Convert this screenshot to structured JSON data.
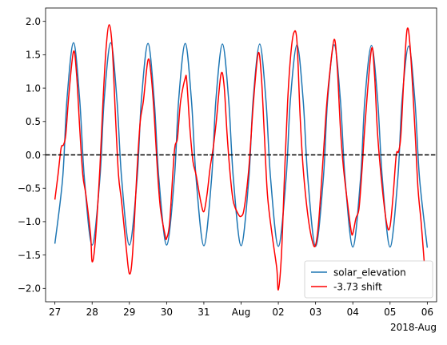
{
  "chart_data": {
    "type": "line",
    "title": "",
    "xlabel": "",
    "ylabel": "",
    "x_offset_label": "2018-Aug",
    "xlim": [
      "2018-07-26T18:00",
      "2018-08-06T06:00"
    ],
    "ylim": [
      -2.2,
      2.2
    ],
    "grid": false,
    "legend_position": "lower-right",
    "x_ticks": [
      {
        "date": "2018-07-27",
        "label": "27"
      },
      {
        "date": "2018-07-28",
        "label": "28"
      },
      {
        "date": "2018-07-29",
        "label": "29"
      },
      {
        "date": "2018-07-30",
        "label": "30"
      },
      {
        "date": "2018-07-31",
        "label": "31"
      },
      {
        "date": "2018-08-01",
        "label": "Aug"
      },
      {
        "date": "2018-08-02",
        "label": "02"
      },
      {
        "date": "2018-08-03",
        "label": "03"
      },
      {
        "date": "2018-08-04",
        "label": "04"
      },
      {
        "date": "2018-08-05",
        "label": "05"
      },
      {
        "date": "2018-08-06",
        "label": "06"
      }
    ],
    "y_ticks": [
      -2.0,
      -1.5,
      -1.0,
      -0.5,
      0.0,
      0.5,
      1.0,
      1.5,
      2.0
    ],
    "y_tick_labels": [
      "−2.0",
      "−1.5",
      "−1.0",
      "−0.5",
      "0.0",
      "0.5",
      "1.0",
      "1.5",
      "2.0"
    ],
    "reference_line": {
      "y": 0.0,
      "style": "dashed",
      "color": "#000000"
    },
    "series": [
      {
        "name": "solar_elevation",
        "color": "#1f77b4",
        "points": [
          [
            "2018-07-27T00:00",
            -1.33
          ],
          [
            "2018-07-27T05:00",
            -0.35
          ],
          [
            "2018-07-27T07:45",
            0.82
          ],
          [
            "2018-07-27T12:00",
            1.68
          ],
          [
            "2018-07-27T16:00",
            0.82
          ],
          [
            "2018-07-27T19:00",
            -0.35
          ],
          [
            "2018-07-28T00:00",
            -1.35
          ],
          [
            "2018-07-28T05:00",
            -0.35
          ],
          [
            "2018-07-28T07:45",
            0.82
          ],
          [
            "2018-07-28T12:00",
            1.68
          ],
          [
            "2018-07-28T16:00",
            0.82
          ],
          [
            "2018-07-28T19:00",
            -0.35
          ],
          [
            "2018-07-29T00:00",
            -1.35
          ],
          [
            "2018-07-29T05:00",
            -0.35
          ],
          [
            "2018-07-29T07:45",
            0.82
          ],
          [
            "2018-07-29T12:00",
            1.67
          ],
          [
            "2018-07-29T16:00",
            0.82
          ],
          [
            "2018-07-29T19:00",
            -0.35
          ],
          [
            "2018-07-30T00:00",
            -1.35
          ],
          [
            "2018-07-30T05:00",
            -0.35
          ],
          [
            "2018-07-30T07:45",
            0.82
          ],
          [
            "2018-07-30T12:00",
            1.67
          ],
          [
            "2018-07-30T16:00",
            0.82
          ],
          [
            "2018-07-30T19:00",
            -0.35
          ],
          [
            "2018-07-31T00:00",
            -1.36
          ],
          [
            "2018-07-31T05:00",
            -0.35
          ],
          [
            "2018-07-31T07:45",
            0.82
          ],
          [
            "2018-07-31T12:00",
            1.66
          ],
          [
            "2018-07-31T16:00",
            0.82
          ],
          [
            "2018-07-31T19:00",
            -0.35
          ],
          [
            "2018-08-01T00:00",
            -1.36
          ],
          [
            "2018-08-01T05:00",
            -0.35
          ],
          [
            "2018-08-01T07:45",
            0.82
          ],
          [
            "2018-08-01T12:00",
            1.66
          ],
          [
            "2018-08-01T16:00",
            0.82
          ],
          [
            "2018-08-01T19:00",
            -0.35
          ],
          [
            "2018-08-02T00:00",
            -1.37
          ],
          [
            "2018-08-02T05:00",
            -0.35
          ],
          [
            "2018-08-02T07:45",
            0.82
          ],
          [
            "2018-08-02T12:00",
            1.65
          ],
          [
            "2018-08-02T16:00",
            0.82
          ],
          [
            "2018-08-02T19:00",
            -0.35
          ],
          [
            "2018-08-03T00:00",
            -1.37
          ],
          [
            "2018-08-03T05:00",
            -0.35
          ],
          [
            "2018-08-03T07:45",
            0.82
          ],
          [
            "2018-08-03T12:00",
            1.65
          ],
          [
            "2018-08-03T16:00",
            0.82
          ],
          [
            "2018-08-03T19:00",
            -0.35
          ],
          [
            "2018-08-04T00:00",
            -1.38
          ],
          [
            "2018-08-04T05:00",
            -0.35
          ],
          [
            "2018-08-04T07:45",
            0.82
          ],
          [
            "2018-08-04T12:00",
            1.64
          ],
          [
            "2018-08-04T16:00",
            0.82
          ],
          [
            "2018-08-04T19:00",
            -0.35
          ],
          [
            "2018-08-05T00:00",
            -1.38
          ],
          [
            "2018-08-05T05:00",
            -0.35
          ],
          [
            "2018-08-05T07:45",
            0.82
          ],
          [
            "2018-08-05T12:00",
            1.63
          ],
          [
            "2018-08-05T16:00",
            0.82
          ],
          [
            "2018-08-05T19:00",
            -0.35
          ],
          [
            "2018-08-06T00:00",
            -1.39
          ]
        ]
      },
      {
        "name": "-3.73 shift",
        "color": "#ff0000",
        "points": [
          [
            "2018-07-27T00:00",
            -0.67
          ],
          [
            "2018-07-27T02:00",
            -0.3
          ],
          [
            "2018-07-27T04:00",
            0.1
          ],
          [
            "2018-07-27T05:30",
            0.15
          ],
          [
            "2018-07-27T07:00",
            0.3
          ],
          [
            "2018-07-27T09:00",
            0.9
          ],
          [
            "2018-07-27T12:00",
            1.55
          ],
          [
            "2018-07-27T14:00",
            1.2
          ],
          [
            "2018-07-27T16:00",
            0.4
          ],
          [
            "2018-07-27T18:00",
            -0.3
          ],
          [
            "2018-07-27T20:00",
            -0.6
          ],
          [
            "2018-07-27T23:00",
            -1.2
          ],
          [
            "2018-07-28T00:00",
            -1.6
          ],
          [
            "2018-07-28T02:00",
            -1.3
          ],
          [
            "2018-07-28T05:00",
            -0.2
          ],
          [
            "2018-07-28T07:00",
            0.8
          ],
          [
            "2018-07-28T09:00",
            1.6
          ],
          [
            "2018-07-28T11:00",
            1.95
          ],
          [
            "2018-07-28T13:00",
            1.6
          ],
          [
            "2018-07-28T15:00",
            0.6
          ],
          [
            "2018-07-28T17:00",
            -0.3
          ],
          [
            "2018-07-28T19:00",
            -0.7
          ],
          [
            "2018-07-28T22:00",
            -1.4
          ],
          [
            "2018-07-29T00:00",
            -1.78
          ],
          [
            "2018-07-29T02:00",
            -1.5
          ],
          [
            "2018-07-29T05:00",
            -0.2
          ],
          [
            "2018-07-29T07:00",
            0.5
          ],
          [
            "2018-07-29T09:00",
            0.8
          ],
          [
            "2018-07-29T12:00",
            1.42
          ],
          [
            "2018-07-29T14:00",
            1.2
          ],
          [
            "2018-07-29T16:00",
            0.6
          ],
          [
            "2018-07-29T18:00",
            -0.2
          ],
          [
            "2018-07-29T20:00",
            -0.8
          ],
          [
            "2018-07-29T23:00",
            -1.2
          ],
          [
            "2018-07-30T00:00",
            -1.25
          ],
          [
            "2018-07-30T02:00",
            -1.0
          ],
          [
            "2018-07-30T05:00",
            0.05
          ],
          [
            "2018-07-30T07:00",
            0.25
          ],
          [
            "2018-07-30T09:00",
            0.8
          ],
          [
            "2018-07-30T12:00",
            1.15
          ],
          [
            "2018-07-30T13:00",
            1.1
          ],
          [
            "2018-07-30T15:00",
            0.4
          ],
          [
            "2018-07-30T17:00",
            -0.1
          ],
          [
            "2018-07-30T19:00",
            -0.3
          ],
          [
            "2018-07-30T22:00",
            -0.7
          ],
          [
            "2018-07-31T00:00",
            -0.85
          ],
          [
            "2018-07-31T02:00",
            -0.6
          ],
          [
            "2018-07-31T04:00",
            -0.2
          ],
          [
            "2018-07-31T06:00",
            0.1
          ],
          [
            "2018-07-31T08:00",
            0.5
          ],
          [
            "2018-07-31T11:00",
            1.2
          ],
          [
            "2018-07-31T13:00",
            1.05
          ],
          [
            "2018-07-31T15:00",
            0.3
          ],
          [
            "2018-07-31T17:00",
            -0.3
          ],
          [
            "2018-07-31T19:00",
            -0.7
          ],
          [
            "2018-07-31T22:00",
            -0.88
          ],
          [
            "2018-08-01T00:00",
            -0.92
          ],
          [
            "2018-08-01T02:00",
            -0.8
          ],
          [
            "2018-08-01T05:00",
            -0.2
          ],
          [
            "2018-08-01T08:00",
            0.8
          ],
          [
            "2018-08-01T11:00",
            1.52
          ],
          [
            "2018-08-01T13:00",
            1.2
          ],
          [
            "2018-08-01T15:00",
            0.3
          ],
          [
            "2018-08-01T17:00",
            -0.6
          ],
          [
            "2018-08-01T20:00",
            -1.2
          ],
          [
            "2018-08-01T23:00",
            -1.7
          ],
          [
            "2018-08-02T00:00",
            -2.02
          ],
          [
            "2018-08-02T02:00",
            -1.5
          ],
          [
            "2018-08-02T04:00",
            -0.3
          ],
          [
            "2018-08-02T06:00",
            0.8
          ],
          [
            "2018-08-02T08:00",
            1.5
          ],
          [
            "2018-08-02T10:00",
            1.83
          ],
          [
            "2018-08-02T12:00",
            1.7
          ],
          [
            "2018-08-02T14:00",
            0.6
          ],
          [
            "2018-08-02T16:00",
            -0.2
          ],
          [
            "2018-08-02T19:00",
            -0.9
          ],
          [
            "2018-08-02T22:00",
            -1.3
          ],
          [
            "2018-08-03T00:00",
            -1.35
          ],
          [
            "2018-08-03T02:00",
            -1.0
          ],
          [
            "2018-08-03T05:00",
            0.0
          ],
          [
            "2018-08-03T07:00",
            0.7
          ],
          [
            "2018-08-03T09:00",
            1.2
          ],
          [
            "2018-08-03T12:00",
            1.73
          ],
          [
            "2018-08-03T14:00",
            1.3
          ],
          [
            "2018-08-03T16:00",
            0.4
          ],
          [
            "2018-08-03T18:00",
            -0.2
          ],
          [
            "2018-08-03T21:00",
            -0.8
          ],
          [
            "2018-08-03T23:00",
            -1.15
          ],
          [
            "2018-08-04T00:00",
            -1.18
          ],
          [
            "2018-08-04T02:00",
            -0.95
          ],
          [
            "2018-08-04T04:00",
            -0.8
          ],
          [
            "2018-08-04T06:00",
            -0.2
          ],
          [
            "2018-08-04T08:00",
            0.5
          ],
          [
            "2018-08-04T12:00",
            1.58
          ],
          [
            "2018-08-04T14:00",
            1.2
          ],
          [
            "2018-08-04T16:00",
            0.3
          ],
          [
            "2018-08-04T19:00",
            -0.5
          ],
          [
            "2018-08-04T22:00",
            -1.05
          ],
          [
            "2018-08-05T00:00",
            -1.07
          ],
          [
            "2018-08-05T02:00",
            -0.6
          ],
          [
            "2018-08-05T04:00",
            0.0
          ],
          [
            "2018-08-05T05:30",
            0.05
          ],
          [
            "2018-08-05T07:00",
            0.3
          ],
          [
            "2018-08-05T09:00",
            1.2
          ],
          [
            "2018-08-05T11:00",
            1.88
          ],
          [
            "2018-08-05T13:00",
            1.6
          ],
          [
            "2018-08-05T16:00",
            0.4
          ],
          [
            "2018-08-05T18:00",
            -0.5
          ],
          [
            "2018-08-05T20:00",
            -1.0
          ],
          [
            "2018-08-05T22:00",
            -1.6
          ]
        ]
      }
    ]
  }
}
